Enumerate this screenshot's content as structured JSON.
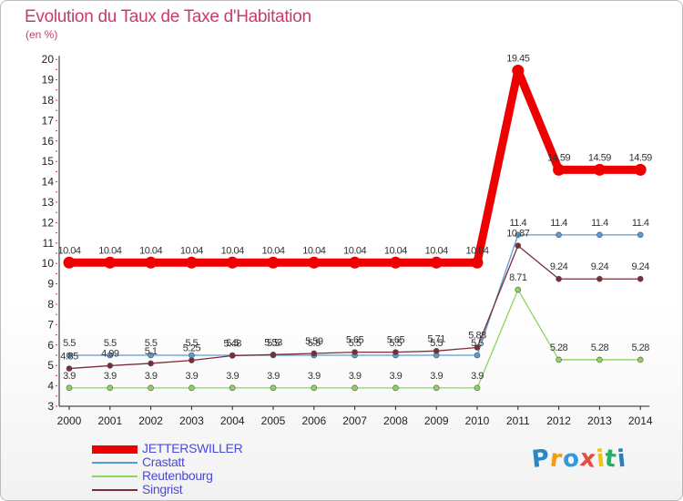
{
  "header": {
    "title": "Evolution du Taux de Taxe d'Habitation",
    "subtitle": "(en %)"
  },
  "logo": {
    "letters": [
      "P",
      "r",
      "o",
      "x",
      "i",
      "t",
      "i"
    ],
    "colors": [
      "#2e86c1",
      "#f39c12",
      "#3498db",
      "#e74c3c",
      "#f1c40f",
      "#27ae60",
      "#2980b9"
    ]
  },
  "chart_data": {
    "type": "line",
    "x": [
      "2000",
      "2001",
      "2002",
      "2003",
      "2004",
      "2005",
      "2006",
      "2007",
      "2008",
      "2009",
      "2010",
      "2011",
      "2012",
      "2013",
      "2014"
    ],
    "ylim": [
      3,
      20
    ],
    "yticks": [
      "3",
      "4",
      "5",
      "6",
      "7",
      "8",
      "9",
      "10",
      "11",
      "12",
      "13",
      "14",
      "15",
      "16",
      "17",
      "18",
      "19",
      "20"
    ],
    "grid": false,
    "legend_position": "bottom-left",
    "series": [
      {
        "name": "JETTERSWILLER",
        "color": "#ee0000",
        "values": [
          10.04,
          10.04,
          10.04,
          10.04,
          10.04,
          10.04,
          10.04,
          10.04,
          10.04,
          10.04,
          10.04,
          19.45,
          14.59,
          14.59,
          14.59
        ],
        "labels": [
          "10.04",
          "10.04",
          "10.04",
          "10.04",
          "10.04",
          "10.04",
          "10.04",
          "10.04",
          "10.04",
          "10.04",
          "10.04",
          "19.45",
          "14.59",
          "14.59",
          "14.59"
        ]
      },
      {
        "name": "Crastatt",
        "color": "#5b9bd5",
        "values": [
          5.5,
          5.5,
          5.5,
          5.5,
          5.5,
          5.5,
          5.5,
          5.5,
          5.5,
          5.5,
          5.5,
          11.4,
          11.4,
          11.4,
          11.4
        ],
        "labels": [
          "5.5",
          "5.5",
          "5.5",
          "5.5",
          "5.5",
          "5.5",
          "5.5",
          "5.5",
          "5.5",
          "5.5",
          "5.5",
          "11.4",
          "11.4",
          "11.4",
          "11.4"
        ]
      },
      {
        "name": "Reutenbourg",
        "color": "#8fd35f",
        "values": [
          3.9,
          3.9,
          3.9,
          3.9,
          3.9,
          3.9,
          3.9,
          3.9,
          3.9,
          3.9,
          3.9,
          8.71,
          5.28,
          5.28,
          5.28
        ],
        "labels": [
          "3.9",
          "3.9",
          "3.9",
          "3.9",
          "3.9",
          "3.9",
          "3.9",
          "3.9",
          "3.9",
          "3.9",
          "3.9",
          "8.71",
          "5.28",
          "5.28",
          "5.28"
        ]
      },
      {
        "name": "Singrist",
        "color": "#7b2c3a",
        "values": [
          4.85,
          4.99,
          5.1,
          5.25,
          5.48,
          5.53,
          5.59,
          5.65,
          5.65,
          5.71,
          5.88,
          10.87,
          9.24,
          9.24,
          9.24
        ],
        "labels": [
          "4.85",
          "4.99",
          "5.1",
          "5.25",
          "5.48",
          "5.53",
          "5.59",
          "5.65",
          "5.65",
          "5.71",
          "5.88",
          "10.87",
          "9.24",
          "9.24",
          "9.24"
        ]
      }
    ]
  }
}
